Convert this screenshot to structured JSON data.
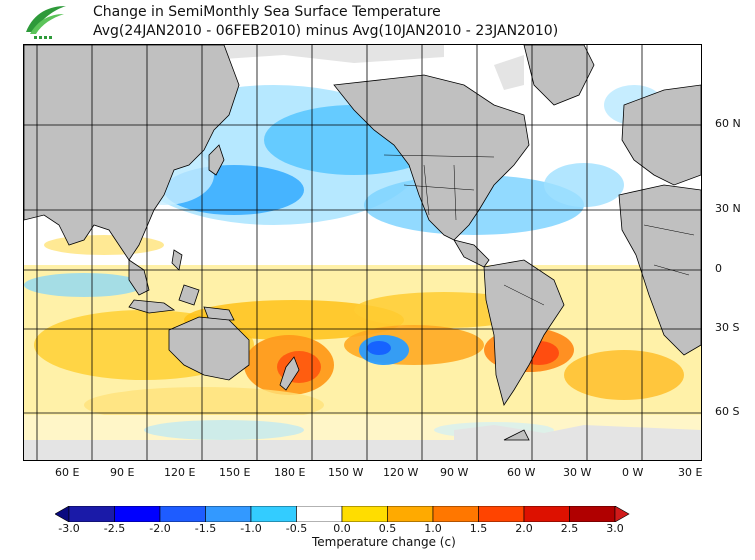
{
  "header": {
    "title": "Change in SemiMonthly Sea Surface Temperature",
    "subtitle": "Avg(24JAN2010 - 06FEB2010) minus Avg(10JAN2010 - 23JAN2010)"
  },
  "map": {
    "lat_labels": [
      "60 N",
      "30 N",
      "0",
      "30 S",
      "60 S"
    ],
    "lon_labels": [
      "60 E",
      "90 E",
      "120 E",
      "150 E",
      "180 E",
      "150 W",
      "120 W",
      "90 W",
      "60 W",
      "30 W",
      "0 W",
      "30 E"
    ],
    "land_color": "#c0c0c0",
    "ice_color": "#e4e4e4"
  },
  "legend": {
    "title": "Temperature change  (c)",
    "ticks": [
      "-3.0",
      "-2.5",
      "-2.0",
      "-1.5",
      "-1.0",
      "-0.5",
      "0.0",
      "0.5",
      "1.0",
      "1.5",
      "2.0",
      "2.5",
      "3.0"
    ],
    "colors": [
      "#1a1aa8",
      "#0000ff",
      "#1e5cff",
      "#3399ff",
      "#33ccff",
      "#ffffff",
      "#ffdd00",
      "#ffaa00",
      "#ff7700",
      "#ff4400",
      "#dd1100",
      "#b00000"
    ],
    "end_colors": [
      "#0a0a80",
      "#d01a1a"
    ]
  }
}
